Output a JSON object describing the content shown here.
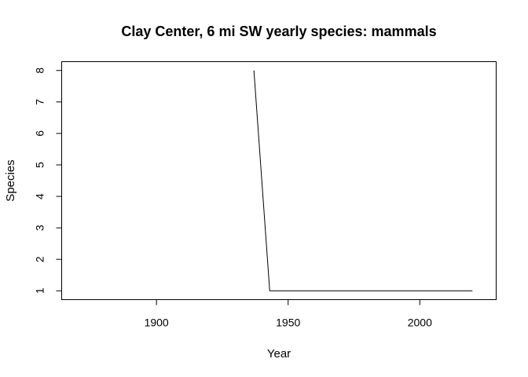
{
  "chart_data": {
    "type": "line",
    "title": "Clay Center, 6 mi SW yearly species: mammals",
    "xlabel": "Year",
    "ylabel": "Species",
    "xlim": [
      1864,
      2029
    ],
    "ylim": [
      0.72,
      8.28
    ],
    "x_ticks": [
      1900,
      1950,
      2000
    ],
    "y_ticks": [
      1,
      2,
      3,
      4,
      5,
      6,
      7,
      8
    ],
    "grid": false,
    "legend": "none",
    "series": [
      {
        "color": "#000000",
        "x": [
          1937,
          1943,
          2020
        ],
        "y": [
          8,
          1,
          1
        ]
      }
    ]
  }
}
